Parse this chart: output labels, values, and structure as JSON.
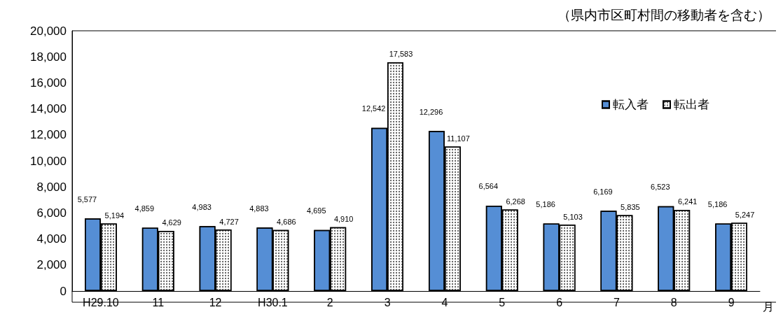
{
  "chart_data": {
    "type": "bar",
    "annotations": [
      "（県内市区町村間の移動者を含む）"
    ],
    "xlabel": "月",
    "categories": [
      "H29.10",
      "11",
      "12",
      "H30.1",
      "2",
      "3",
      "4",
      "5",
      "6",
      "7",
      "8",
      "9"
    ],
    "series": [
      {
        "name": "転入者",
        "color": "#558ed5",
        "values": [
          5577,
          4859,
          4983,
          4883,
          4695,
          12542,
          12296,
          6564,
          5186,
          6169,
          6523,
          5186
        ],
        "value_labels": [
          "5,577",
          "4,859",
          "4,983",
          "4,883",
          "4,695",
          "12,542",
          "12,296",
          "6,564",
          "5,186",
          "6,169",
          "6,523",
          "5,186"
        ]
      },
      {
        "name": "転出者",
        "color": "#ffffff",
        "values": [
          5194,
          4629,
          4727,
          4686,
          4910,
          17583,
          11107,
          6268,
          5103,
          5835,
          6241,
          5247
        ],
        "value_labels": [
          "5,194",
          "4,629",
          "4,727",
          "4,686",
          "4,910",
          "17,583",
          "11,107",
          "6,268",
          "5,103",
          "5,835",
          "6,241",
          "5,247"
        ]
      }
    ],
    "ylim": [
      0,
      20000
    ],
    "yticks": [
      0,
      {
        "value": 2000,
        "label": "2,000"
      },
      {
        "value": 4000,
        "label": "4,000"
      },
      {
        "value": 6000,
        "label": "6,000"
      },
      {
        "value": 8000,
        "label": "8,000"
      },
      {
        "value": 10000,
        "label": "10,000"
      },
      {
        "value": 12000,
        "label": "12,000"
      },
      {
        "value": 14000,
        "label": "14,000"
      },
      {
        "value": 16000,
        "label": "16,000"
      },
      {
        "value": 18000,
        "label": "18,000"
      },
      {
        "value": 20000,
        "label": "20,000"
      }
    ],
    "grid": false,
    "legend": "top right"
  }
}
